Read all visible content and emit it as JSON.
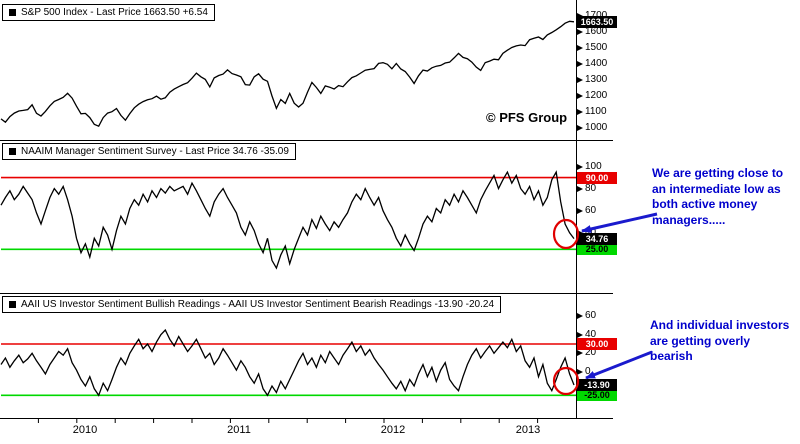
{
  "watermark": "© PFS Group",
  "colors": {
    "series_line": "#000000",
    "overbought_line": "#e80000",
    "oversold_line": "#00d800",
    "annotation_text": "#0000cc",
    "last_price_label_bg": "#000000"
  },
  "annotations": [
    {
      "text": "We are getting close to an intermediate low as both active money managers....."
    },
    {
      "text": "And individual investors are getting overly bearish"
    }
  ],
  "chart_data": [
    {
      "type": "line",
      "name": "sp500",
      "title": "S&P 500 Index - Last Price 1663.50 +6.54",
      "last_price": 1663.5,
      "change": 6.54,
      "last_label": "1663.50",
      "ylim": [
        950,
        1750
      ],
      "yticks": [
        1000,
        1100,
        1200,
        1300,
        1400,
        1500,
        1600,
        1700
      ],
      "xticklabels": [
        "2010",
        "2011",
        "2012",
        "2013"
      ],
      "hlines": [],
      "values": [
        1057,
        1036,
        1071,
        1093,
        1106,
        1110,
        1115,
        1145,
        1092,
        1075,
        1104,
        1139,
        1166,
        1178,
        1192,
        1217,
        1187,
        1136,
        1089,
        1091,
        1065,
        1023,
        1011,
        1065,
        1093,
        1102,
        1122,
        1079,
        1049,
        1090,
        1126,
        1149,
        1165,
        1176,
        1183,
        1199,
        1180,
        1189,
        1224,
        1243,
        1258,
        1272,
        1283,
        1311,
        1343,
        1320,
        1304,
        1257,
        1313,
        1328,
        1337,
        1363,
        1340,
        1331,
        1320,
        1271,
        1268,
        1320,
        1339,
        1305,
        1292,
        1200,
        1123,
        1178,
        1154,
        1216,
        1155,
        1131,
        1155,
        1224,
        1285,
        1253,
        1216,
        1263,
        1255,
        1244,
        1265,
        1258,
        1289,
        1315,
        1326,
        1344,
        1361,
        1366,
        1371,
        1404,
        1408,
        1398,
        1370,
        1403,
        1369,
        1353,
        1318,
        1278,
        1326,
        1362,
        1356,
        1376,
        1386,
        1391,
        1406,
        1411,
        1438,
        1466,
        1441,
        1433,
        1412,
        1380,
        1360,
        1409,
        1418,
        1430,
        1426,
        1466,
        1486,
        1503,
        1513,
        1519,
        1515,
        1552,
        1561,
        1569,
        1553,
        1582,
        1597,
        1614,
        1633,
        1655,
        1667,
        1663.5
      ]
    },
    {
      "type": "line",
      "name": "naaim",
      "title": "NAAIM Manager Sentiment Survey - Last Price 34.76 -35.09",
      "last_price": 34.76,
      "change": -35.09,
      "last_label": "34.76",
      "ylim": [
        -10,
        115
      ],
      "yticks": [
        40,
        60,
        80,
        100
      ],
      "xticklabels": [
        "2010",
        "2011",
        "2012",
        "2013"
      ],
      "hlines": [
        {
          "value": 90,
          "label": "90.00",
          "color": "#e80000",
          "text_color": "#ffffff",
          "name": "overbought-threshold-line"
        },
        {
          "value": 25,
          "label": "25.00",
          "color": "#00d800",
          "text_color": "#000000",
          "name": "oversold-threshold-line"
        }
      ],
      "values": [
        65,
        72,
        78,
        70,
        75,
        82,
        76,
        70,
        58,
        48,
        60,
        72,
        80,
        75,
        82,
        70,
        55,
        35,
        22,
        30,
        18,
        35,
        28,
        45,
        38,
        25,
        42,
        55,
        48,
        62,
        70,
        65,
        75,
        68,
        78,
        72,
        80,
        76,
        82,
        78,
        80,
        82,
        75,
        85,
        78,
        70,
        62,
        55,
        68,
        75,
        80,
        72,
        65,
        58,
        45,
        38,
        50,
        42,
        30,
        22,
        35,
        15,
        8,
        20,
        28,
        12,
        25,
        35,
        45,
        38,
        52,
        44,
        55,
        48,
        42,
        50,
        45,
        52,
        58,
        68,
        75,
        70,
        80,
        72,
        65,
        72,
        60,
        52,
        45,
        35,
        28,
        38,
        30,
        24,
        35,
        48,
        55,
        50,
        62,
        58,
        70,
        65,
        75,
        68,
        78,
        72,
        65,
        58,
        70,
        78,
        85,
        92,
        80,
        88,
        95,
        85,
        92,
        80,
        75,
        82,
        70,
        78,
        65,
        72,
        88,
        95,
        68,
        48,
        40,
        34.76
      ]
    },
    {
      "type": "line",
      "name": "aaii-spread",
      "title": "AAII US Investor Sentiment Bullish Readings - AAII US Investor Sentiment Bearish Readings -13.90 -20.24",
      "last_price": -13.9,
      "change": -20.24,
      "last_label": "-13.90",
      "ylim": [
        -45,
        75
      ],
      "yticks": [
        -20,
        0,
        20,
        40,
        60
      ],
      "xticklabels": [
        "2010",
        "2011",
        "2012",
        "2013"
      ],
      "hlines": [
        {
          "value": 30,
          "label": "30.00",
          "color": "#e80000",
          "text_color": "#ffffff",
          "name": "overbought-threshold-line"
        },
        {
          "value": -25,
          "label": "-25.00",
          "color": "#00d800",
          "text_color": "#000000",
          "name": "oversold-threshold-line"
        }
      ],
      "values": [
        8,
        15,
        5,
        12,
        18,
        10,
        14,
        20,
        12,
        5,
        -2,
        8,
        15,
        22,
        18,
        25,
        10,
        2,
        -8,
        -15,
        -5,
        -18,
        -25,
        -12,
        -20,
        -8,
        5,
        15,
        8,
        20,
        28,
        35,
        25,
        30,
        22,
        32,
        40,
        45,
        35,
        28,
        38,
        30,
        22,
        28,
        35,
        25,
        15,
        20,
        8,
        15,
        25,
        18,
        10,
        2,
        12,
        5,
        -5,
        -12,
        -2,
        -18,
        -25,
        -15,
        -22,
        -10,
        -18,
        -8,
        2,
        12,
        20,
        8,
        15,
        5,
        18,
        10,
        22,
        15,
        8,
        18,
        25,
        32,
        22,
        28,
        18,
        24,
        15,
        8,
        2,
        -5,
        -12,
        -18,
        -10,
        -20,
        -8,
        -15,
        -2,
        8,
        -5,
        5,
        -10,
        2,
        10,
        -8,
        -15,
        -20,
        -5,
        8,
        18,
        25,
        15,
        22,
        28,
        20,
        26,
        32,
        26,
        35,
        22,
        28,
        12,
        5,
        15,
        -5,
        8,
        -12,
        -20,
        -8,
        5,
        15,
        -2,
        -13.9
      ]
    }
  ]
}
